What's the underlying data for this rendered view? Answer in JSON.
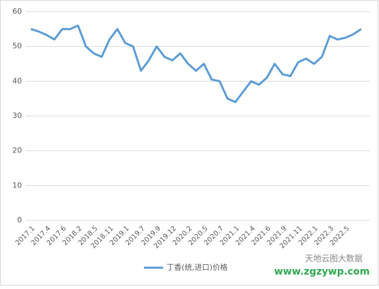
{
  "chart_data": {
    "type": "line",
    "categories": [
      "2017.1",
      null,
      "2017.4",
      null,
      "2017.6",
      null,
      "2018.2",
      null,
      "2018.5",
      null,
      "2018.11",
      null,
      "2019.1",
      null,
      "2019.7",
      null,
      "2019.9",
      null,
      "2019.12",
      null,
      "2020.2",
      null,
      "2020.5",
      null,
      "2020.7",
      null,
      "2021.1",
      null,
      "2021.4",
      null,
      "2021.6",
      null,
      "2021.9",
      null,
      "2021.11",
      null,
      "2022.1",
      null,
      "2022.3",
      null,
      "2022.5",
      null,
      null
    ],
    "series": [
      {
        "name": "丁香(统,进口)价格",
        "color": "#5b9bd5",
        "values": [
          55,
          54.3,
          53.3,
          52,
          55,
          55,
          56,
          50,
          48,
          47,
          52,
          55,
          51,
          50,
          43,
          46,
          50,
          47,
          46,
          48,
          45,
          43,
          45,
          40.5,
          40,
          35,
          34,
          37,
          40,
          39,
          41,
          45,
          42,
          41.5,
          45.5,
          46.5,
          45,
          47,
          53,
          52,
          52.5,
          53.5,
          55
        ]
      }
    ],
    "ylim": [
      0,
      60
    ],
    "yticks": [
      0,
      10,
      20,
      30,
      40,
      50,
      60
    ],
    "grid": true,
    "legend": "bottom",
    "annotations": [
      "www.zgzywp.com",
      "天地云图大数据"
    ]
  }
}
